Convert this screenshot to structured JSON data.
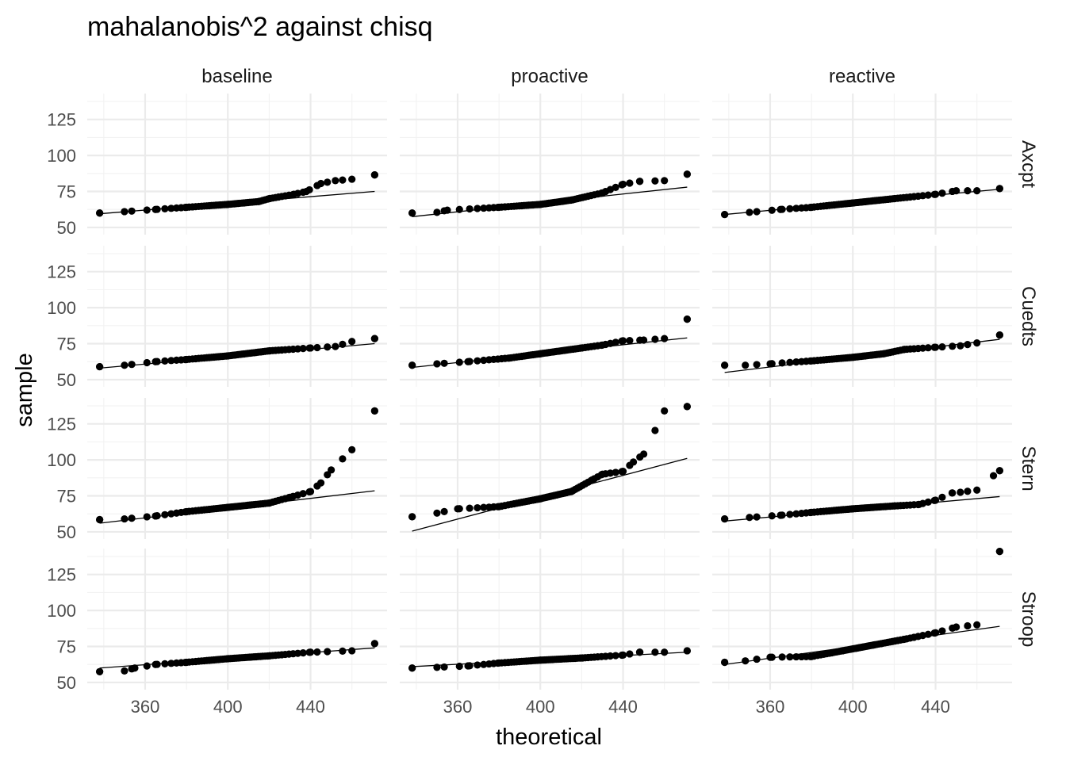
{
  "chart_data": {
    "type": "scatter",
    "subtype": "qq-plot-facet-grid",
    "title": "mahalanobis^2 against chisq",
    "xlabel": "theoretical",
    "ylabel": "sample",
    "xlim": [
      332,
      477
    ],
    "ylim": [
      45,
      143
    ],
    "x_ticks": [
      360,
      400,
      440
    ],
    "x_tick_labels": [
      "360",
      "400",
      "440"
    ],
    "y_ticks": [
      50,
      75,
      100,
      125
    ],
    "y_tick_labels": [
      "50",
      "75",
      "100",
      "125"
    ],
    "columns": [
      "baseline",
      "proactive",
      "reactive"
    ],
    "rows": [
      "Axcpt",
      "Cuedts",
      "Stern",
      "Stroop"
    ],
    "panels": [
      {
        "row": "Axcpt",
        "col": "baseline",
        "line": [
          [
            338,
            59.5
          ],
          [
            471,
            75
          ]
        ],
        "knots": [
          [
            338,
            60
          ],
          [
            350,
            61
          ],
          [
            365,
            62.5
          ],
          [
            380,
            64
          ],
          [
            400,
            66
          ],
          [
            415,
            68
          ],
          [
            420,
            70
          ],
          [
            432,
            73
          ],
          [
            438,
            75
          ],
          [
            445,
            80.5
          ],
          [
            452,
            82.5
          ],
          [
            460,
            83.5
          ],
          [
            471,
            86.5
          ]
        ]
      },
      {
        "row": "Axcpt",
        "col": "proactive",
        "line": [
          [
            338,
            57.5
          ],
          [
            471,
            78
          ]
        ],
        "knots": [
          [
            338,
            60
          ],
          [
            350,
            60.5
          ],
          [
            355,
            62
          ],
          [
            380,
            64
          ],
          [
            400,
            66
          ],
          [
            415,
            69
          ],
          [
            430,
            74
          ],
          [
            440,
            80
          ],
          [
            448,
            82
          ],
          [
            460,
            82.5
          ],
          [
            471,
            87
          ]
        ]
      },
      {
        "row": "Axcpt",
        "col": "reactive",
        "line": [
          [
            338,
            59
          ],
          [
            471,
            76.5
          ]
        ],
        "knots": [
          [
            338,
            59
          ],
          [
            350,
            60.5
          ],
          [
            365,
            62.5
          ],
          [
            380,
            64
          ],
          [
            400,
            67
          ],
          [
            420,
            70
          ],
          [
            440,
            73
          ],
          [
            450,
            75.5
          ],
          [
            460,
            75.5
          ],
          [
            471,
            77
          ]
        ]
      },
      {
        "row": "Cuedts",
        "col": "baseline",
        "line": [
          [
            338,
            58
          ],
          [
            471,
            75
          ]
        ],
        "knots": [
          [
            338,
            59
          ],
          [
            350,
            60
          ],
          [
            365,
            62.5
          ],
          [
            380,
            64
          ],
          [
            400,
            66.5
          ],
          [
            420,
            70
          ],
          [
            440,
            72
          ],
          [
            452,
            73
          ],
          [
            460,
            76.5
          ],
          [
            471,
            78.5
          ]
        ]
      },
      {
        "row": "Cuedts",
        "col": "proactive",
        "line": [
          [
            338,
            58.5
          ],
          [
            471,
            79
          ]
        ],
        "knots": [
          [
            338,
            60
          ],
          [
            350,
            61
          ],
          [
            365,
            62.5
          ],
          [
            385,
            65
          ],
          [
            400,
            68
          ],
          [
            420,
            72
          ],
          [
            430,
            74
          ],
          [
            440,
            77
          ],
          [
            450,
            77.5
          ],
          [
            460,
            78.5
          ],
          [
            471,
            92
          ]
        ]
      },
      {
        "row": "Cuedts",
        "col": "reactive",
        "line": [
          [
            338,
            55
          ],
          [
            471,
            78
          ]
        ],
        "knots": [
          [
            338,
            60
          ],
          [
            348,
            60
          ],
          [
            360,
            61
          ],
          [
            380,
            63
          ],
          [
            400,
            65.5
          ],
          [
            415,
            68
          ],
          [
            425,
            71
          ],
          [
            440,
            72.5
          ],
          [
            452,
            73.5
          ],
          [
            460,
            75.5
          ],
          [
            471,
            81
          ]
        ]
      },
      {
        "row": "Stern",
        "col": "baseline",
        "line": [
          [
            338,
            56
          ],
          [
            471,
            78.5
          ]
        ],
        "knots": [
          [
            338,
            58.5
          ],
          [
            350,
            59
          ],
          [
            365,
            61
          ],
          [
            380,
            64
          ],
          [
            400,
            67
          ],
          [
            420,
            70
          ],
          [
            430,
            74
          ],
          [
            440,
            78
          ],
          [
            445,
            84
          ],
          [
            450,
            93
          ],
          [
            460,
            107
          ],
          [
            471,
            134
          ]
        ]
      },
      {
        "row": "Stern",
        "col": "proactive",
        "line": [
          [
            338,
            50.5
          ],
          [
            471,
            101
          ]
        ],
        "knots": [
          [
            338,
            60.5
          ],
          [
            350,
            63
          ],
          [
            360,
            66
          ],
          [
            380,
            67.5
          ],
          [
            400,
            73
          ],
          [
            415,
            78
          ],
          [
            425,
            86
          ],
          [
            430,
            90
          ],
          [
            440,
            92
          ],
          [
            445,
            98.5
          ],
          [
            450,
            104
          ],
          [
            460,
            134
          ],
          [
            471,
            137
          ]
        ]
      },
      {
        "row": "Stern",
        "col": "reactive",
        "line": [
          [
            338,
            57.5
          ],
          [
            471,
            74.5
          ]
        ],
        "knots": [
          [
            338,
            59
          ],
          [
            350,
            60
          ],
          [
            365,
            61.5
          ],
          [
            380,
            63.5
          ],
          [
            400,
            66
          ],
          [
            420,
            68
          ],
          [
            432,
            69
          ],
          [
            440,
            72
          ],
          [
            448,
            77
          ],
          [
            452,
            77.5
          ],
          [
            460,
            79
          ],
          [
            468,
            89
          ],
          [
            471,
            92.5
          ]
        ]
      },
      {
        "row": "Stroop",
        "col": "baseline",
        "line": [
          [
            338,
            60
          ],
          [
            471,
            74
          ]
        ],
        "knots": [
          [
            338,
            57.5
          ],
          [
            350,
            58
          ],
          [
            355,
            60
          ],
          [
            365,
            62.5
          ],
          [
            380,
            64
          ],
          [
            400,
            66.5
          ],
          [
            420,
            68.5
          ],
          [
            440,
            71
          ],
          [
            460,
            72
          ],
          [
            471,
            77
          ]
        ]
      },
      {
        "row": "Stroop",
        "col": "proactive",
        "line": [
          [
            338,
            61
          ],
          [
            471,
            71
          ]
        ],
        "knots": [
          [
            338,
            60
          ],
          [
            350,
            60.5
          ],
          [
            365,
            61.5
          ],
          [
            380,
            63.5
          ],
          [
            400,
            65.5
          ],
          [
            420,
            67
          ],
          [
            440,
            69
          ],
          [
            448,
            71
          ],
          [
            460,
            71
          ],
          [
            471,
            72
          ]
        ]
      },
      {
        "row": "Stroop",
        "col": "reactive",
        "line": [
          [
            338,
            62.5
          ],
          [
            471,
            89
          ]
        ],
        "knots": [
          [
            338,
            64
          ],
          [
            348,
            65
          ],
          [
            360,
            67.5
          ],
          [
            380,
            68
          ],
          [
            395,
            72
          ],
          [
            410,
            76
          ],
          [
            425,
            80
          ],
          [
            440,
            84.5
          ],
          [
            450,
            88.5
          ],
          [
            460,
            90
          ],
          [
            471,
            141
          ]
        ]
      }
    ]
  }
}
